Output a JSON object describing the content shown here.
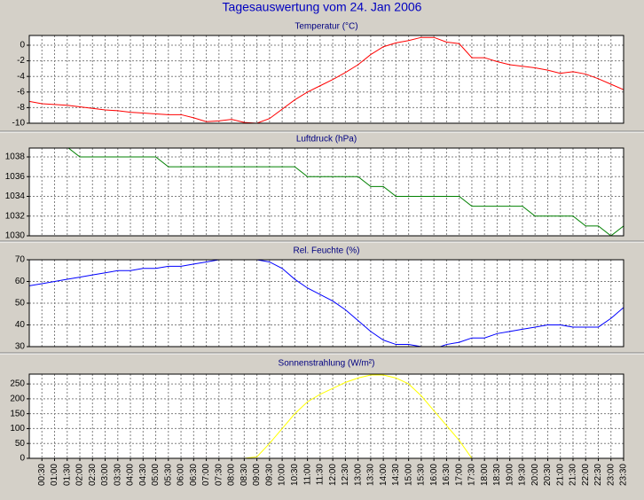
{
  "title": "Tagesauswertung vom 24. Jan 2006",
  "chart_data": [
    {
      "type": "line",
      "title": "Temperatur (°C)",
      "color": "#ff0000",
      "values": [
        -7.2,
        -7.5,
        -7.6,
        -7.7,
        -7.9,
        -8.1,
        -8.3,
        -8.4,
        -8.6,
        -8.7,
        -8.8,
        -8.9,
        -8.9,
        -9.3,
        -9.8,
        -9.7,
        -9.5,
        -9.9,
        -10.0,
        -9.4,
        -8.2,
        -7.0,
        -6.0,
        -5.2,
        -4.4,
        -3.5,
        -2.5,
        -1.2,
        -0.2,
        0.3,
        0.6,
        1.0,
        1.0,
        0.4,
        0.2,
        -1.6,
        -1.6,
        -2.1,
        -2.5,
        -2.7,
        -2.9,
        -3.2,
        -3.6,
        -3.4,
        -3.7,
        -4.3,
        -5.0,
        -5.7
      ],
      "ylim": [
        -10,
        1.25
      ],
      "yticks": [
        -10,
        -8,
        -6,
        -4,
        -2,
        0
      ],
      "grid": true
    },
    {
      "type": "line",
      "title": "Luftdruck (hPa)",
      "color": "#008000",
      "values": [
        1039,
        1039,
        1039,
        1039,
        1038,
        1038,
        1038,
        1038,
        1038,
        1038,
        1038,
        1037,
        1037,
        1037,
        1037,
        1037,
        1037,
        1037,
        1037,
        1037,
        1037,
        1037,
        1036,
        1036,
        1036,
        1036,
        1036,
        1035,
        1035,
        1034,
        1034,
        1034,
        1034,
        1034,
        1034,
        1033,
        1033,
        1033,
        1033,
        1033,
        1032,
        1032,
        1032,
        1032,
        1031,
        1031,
        1030,
        1031
      ],
      "ylim": [
        1030,
        1038.9
      ],
      "yticks": [
        1030,
        1032,
        1034,
        1036,
        1038
      ],
      "grid": true
    },
    {
      "type": "line",
      "title": "Rel. Feuchte (%)",
      "color": "#0000ff",
      "values": [
        58,
        59,
        60,
        61,
        62,
        63,
        64,
        65,
        65,
        66,
        66,
        67,
        67,
        68,
        69,
        70,
        70,
        70,
        70,
        69,
        66,
        61,
        57,
        54,
        51,
        47,
        42,
        37,
        33,
        31,
        31,
        30,
        29,
        31,
        32,
        34,
        34,
        36,
        37,
        38,
        39,
        40,
        40,
        39,
        39,
        39,
        43,
        48
      ],
      "ylim": [
        30,
        70
      ],
      "yticks": [
        30,
        40,
        50,
        60,
        70
      ],
      "grid": true
    },
    {
      "type": "line",
      "title": "Sonnenstrahlung (W/m²)",
      "color": "#ffff00",
      "values": [
        null,
        null,
        null,
        null,
        null,
        null,
        null,
        null,
        null,
        null,
        null,
        null,
        null,
        null,
        null,
        null,
        null,
        0,
        5,
        50,
        100,
        150,
        190,
        215,
        235,
        255,
        270,
        280,
        280,
        270,
        250,
        210,
        160,
        110,
        60,
        0,
        null,
        null,
        null,
        null,
        null,
        null,
        null,
        null,
        null,
        null,
        null,
        null
      ],
      "ylim": [
        0,
        283
      ],
      "yticks": [
        0,
        50,
        100,
        150,
        200,
        250
      ],
      "grid": true,
      "categories": [
        null,
        "00:30",
        "01:00",
        "01:30",
        "02:00",
        "02:30",
        "03:00",
        "03:30",
        "04:00",
        "04:30",
        "05:00",
        "05:30",
        "06:00",
        "06:30",
        "07:00",
        "07:30",
        "08:00",
        "08:30",
        "09:00",
        "09:30",
        "10:00",
        "10:30",
        "11:00",
        "11:30",
        "12:00",
        "12:30",
        "13:00",
        "13:30",
        "14:00",
        "14:30",
        "15:00",
        "15:30",
        "16:00",
        "16:30",
        "17:00",
        "17:30",
        "18:00",
        "18:30",
        "19:00",
        "19:30",
        "20:00",
        "20:30",
        "21:00",
        "21:30",
        "22:00",
        "22:30",
        "23:00",
        "23:30"
      ]
    }
  ]
}
